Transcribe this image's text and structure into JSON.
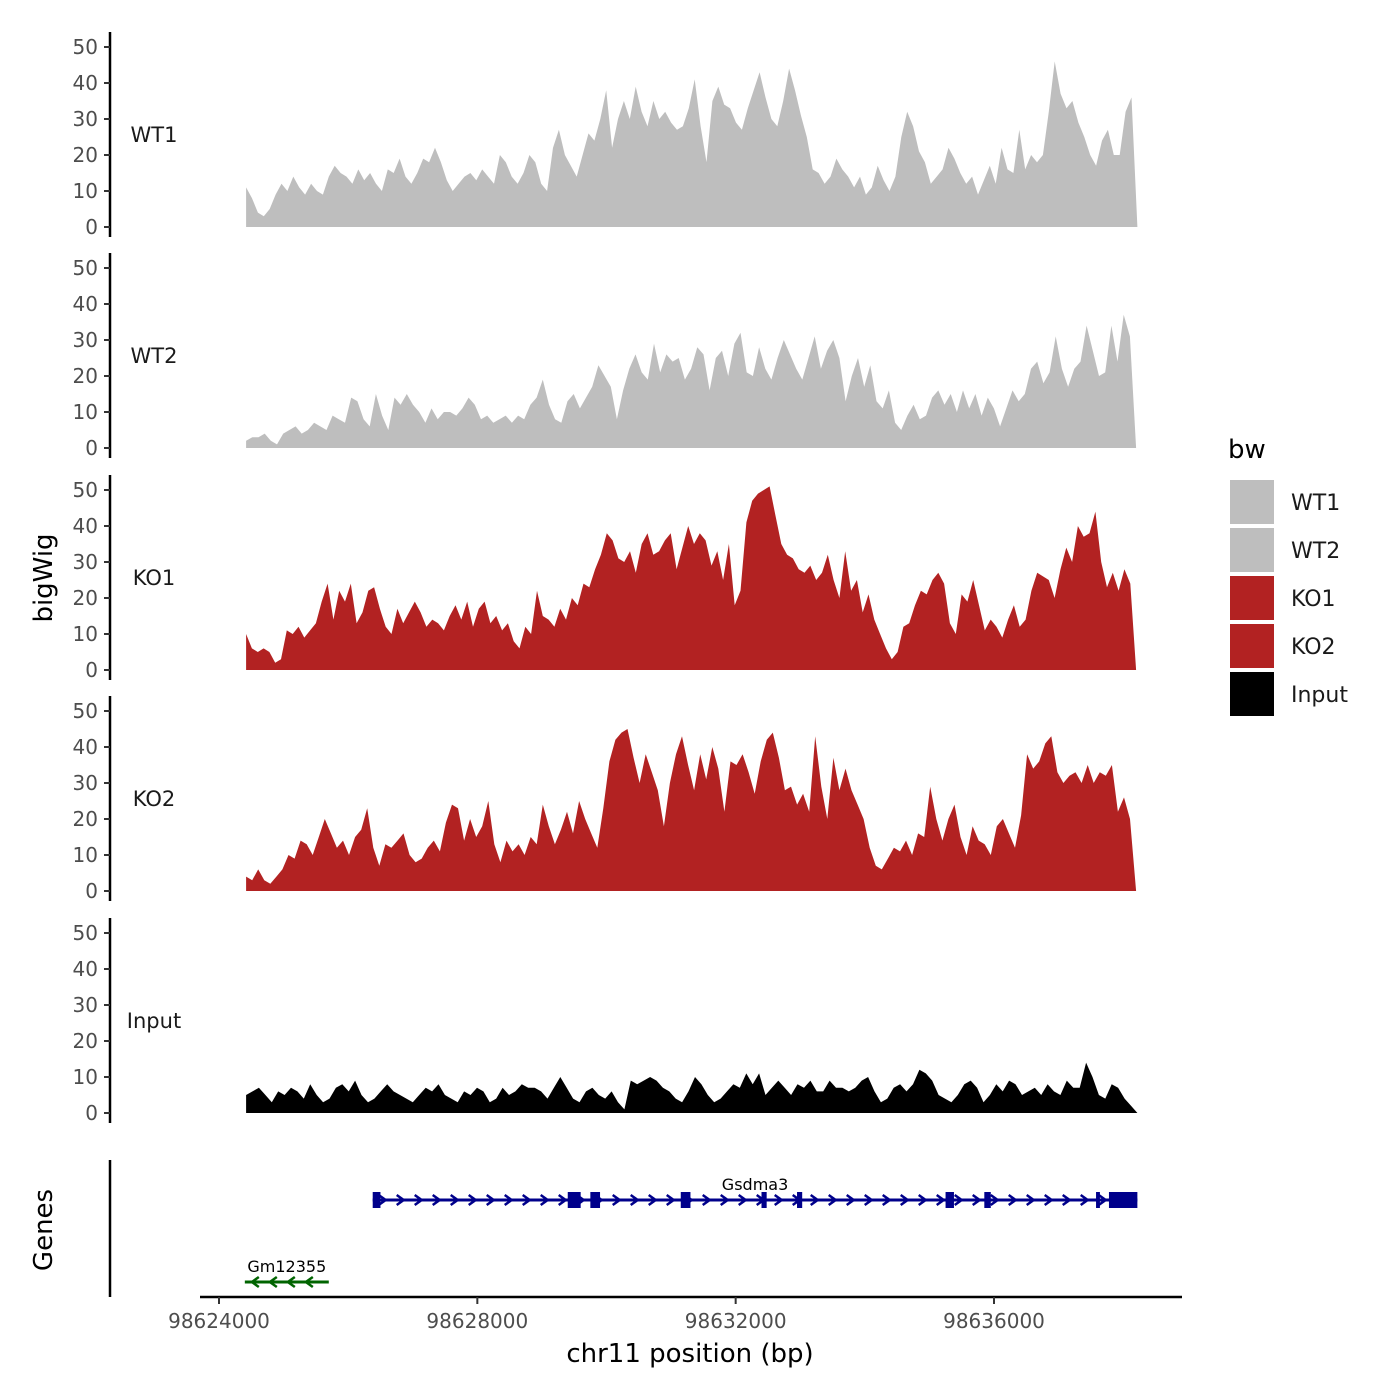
{
  "chart_data": {
    "type": "area",
    "y_axis_label": "bigWig",
    "x_axis_label": "chr11 position (bp)",
    "genes_axis_label": "Genes",
    "y_ticks": [
      0,
      10,
      20,
      30,
      40,
      50
    ],
    "y_range": [
      0,
      55
    ],
    "x_range": [
      98623600,
      98639200
    ],
    "x_ticks": [
      98624000,
      98628000,
      98632000,
      98636000
    ],
    "x_tick_labels": [
      "98624000",
      "98628000",
      "98632000",
      "98636000"
    ],
    "legend": {
      "title": "bw",
      "entries": [
        {
          "label": "WT1",
          "color": "#bebebe"
        },
        {
          "label": "WT2",
          "color": "#bebebe"
        },
        {
          "label": "KO1",
          "color": "#b22222"
        },
        {
          "label": "KO2",
          "color": "#b22222"
        },
        {
          "label": "Input",
          "color": "#000000"
        }
      ]
    },
    "series": [
      {
        "name": "WT1",
        "color": "#bebebe",
        "x_start": 98624420,
        "x_end": 98638220,
        "values": [
          11,
          8,
          4,
          3,
          5,
          9,
          12,
          10,
          14,
          11,
          9,
          12,
          10,
          9,
          14,
          17,
          15,
          14,
          12,
          16,
          13,
          15,
          12,
          10,
          16,
          15,
          19,
          14,
          12,
          15,
          19,
          18,
          22,
          18,
          13,
          10,
          12,
          14,
          15,
          13,
          16,
          14,
          12,
          20,
          18,
          14,
          12,
          15,
          20,
          18,
          12,
          10,
          22,
          27,
          20,
          17,
          14,
          20,
          26,
          24,
          30,
          38,
          22,
          30,
          35,
          30,
          39,
          32,
          28,
          35,
          30,
          32,
          29,
          27,
          28,
          33,
          41,
          28,
          18,
          35,
          39,
          34,
          33,
          29,
          27,
          33,
          38,
          43,
          36,
          30,
          28,
          35,
          44,
          38,
          31,
          25,
          16,
          15,
          12,
          14,
          19,
          16,
          14,
          11,
          14,
          9,
          11,
          17,
          13,
          10,
          14,
          25,
          32,
          28,
          21,
          18,
          12,
          14,
          16,
          22,
          19,
          15,
          12,
          14,
          9,
          13,
          17,
          12,
          22,
          16,
          15,
          27,
          16,
          20,
          18,
          20,
          32,
          46,
          37,
          33,
          35,
          29,
          25,
          20,
          17,
          24,
          27,
          20,
          20,
          32,
          36,
          0
        ]
      },
      {
        "name": "WT2",
        "color": "#bebebe",
        "x_start": 98624420,
        "x_end": 98638200,
        "values": [
          2,
          3,
          3,
          4,
          2,
          1,
          4,
          5,
          6,
          4,
          5,
          7,
          6,
          5,
          9,
          8,
          7,
          14,
          13,
          8,
          6,
          15,
          9,
          5,
          14,
          12,
          15,
          12,
          10,
          7,
          11,
          8,
          10,
          10,
          9,
          11,
          14,
          12,
          8,
          9,
          7,
          8,
          9,
          7,
          9,
          8,
          12,
          14,
          19,
          12,
          8,
          7,
          13,
          15,
          11,
          14,
          17,
          23,
          20,
          17,
          8,
          16,
          22,
          26,
          21,
          19,
          29,
          21,
          26,
          24,
          25,
          19,
          22,
          28,
          26,
          16,
          25,
          27,
          20,
          29,
          32,
          21,
          20,
          28,
          22,
          19,
          25,
          30,
          26,
          22,
          19,
          25,
          31,
          22,
          27,
          30,
          25,
          13,
          20,
          25,
          17,
          23,
          13,
          11,
          16,
          7,
          5,
          9,
          12,
          8,
          9,
          14,
          16,
          12,
          15,
          10,
          16,
          11,
          15,
          9,
          14,
          11,
          6,
          11,
          16,
          13,
          15,
          22,
          24,
          18,
          21,
          31,
          22,
          17,
          22,
          24,
          34,
          27,
          20,
          21,
          34,
          24,
          37,
          31,
          0
        ]
      },
      {
        "name": "KO1",
        "color": "#b22222",
        "x_start": 98624420,
        "x_end": 98638200,
        "values": [
          10,
          6,
          5,
          6,
          5,
          2,
          3,
          11,
          10,
          12,
          9,
          11,
          13,
          19,
          24,
          14,
          22,
          19,
          24,
          13,
          16,
          22,
          23,
          17,
          12,
          10,
          17,
          13,
          16,
          19,
          16,
          12,
          14,
          13,
          11,
          15,
          18,
          14,
          19,
          12,
          17,
          19,
          13,
          15,
          11,
          13,
          8,
          6,
          12,
          10,
          22,
          15,
          14,
          12,
          17,
          14,
          20,
          18,
          24,
          23,
          28,
          32,
          38,
          36,
          31,
          30,
          33,
          27,
          35,
          38,
          32,
          33,
          36,
          38,
          28,
          34,
          40,
          35,
          38,
          36,
          29,
          33,
          25,
          35,
          18,
          22,
          41,
          47,
          49,
          50,
          51,
          43,
          35,
          32,
          31,
          28,
          27,
          29,
          25,
          27,
          32,
          25,
          20,
          33,
          22,
          25,
          16,
          21,
          14,
          10,
          6,
          3,
          5,
          12,
          13,
          18,
          22,
          21,
          25,
          27,
          24,
          13,
          10,
          21,
          19,
          25,
          18,
          11,
          14,
          12,
          9,
          14,
          18,
          12,
          14,
          22,
          27,
          26,
          25,
          20,
          28,
          34,
          30,
          40,
          37,
          38,
          44,
          30,
          23,
          27,
          22,
          28,
          24,
          0
        ]
      },
      {
        "name": "KO2",
        "color": "#b22222",
        "x_start": 98624420,
        "x_end": 98638200,
        "values": [
          4,
          3,
          6,
          3,
          2,
          4,
          6,
          10,
          9,
          14,
          13,
          10,
          15,
          20,
          16,
          12,
          14,
          10,
          15,
          17,
          23,
          12,
          7,
          13,
          12,
          14,
          16,
          10,
          8,
          9,
          12,
          14,
          11,
          19,
          24,
          23,
          14,
          20,
          15,
          18,
          25,
          13,
          8,
          14,
          11,
          13,
          10,
          15,
          13,
          24,
          18,
          13,
          17,
          22,
          16,
          25,
          20,
          16,
          12,
          23,
          36,
          42,
          44,
          45,
          37,
          30,
          38,
          33,
          28,
          18,
          30,
          38,
          43,
          35,
          28,
          38,
          31,
          40,
          34,
          22,
          36,
          35,
          38,
          33,
          27,
          36,
          42,
          44,
          37,
          28,
          29,
          24,
          27,
          22,
          43,
          29,
          20,
          37,
          28,
          34,
          28,
          24,
          20,
          12,
          7,
          6,
          9,
          12,
          11,
          14,
          10,
          16,
          15,
          29,
          20,
          14,
          20,
          24,
          15,
          10,
          18,
          14,
          13,
          10,
          18,
          20,
          16,
          12,
          21,
          38,
          34,
          36,
          41,
          43,
          33,
          30,
          32,
          33,
          30,
          35,
          30,
          33,
          32,
          35,
          22,
          26,
          20,
          0
        ]
      },
      {
        "name": "Input",
        "color": "#000000",
        "x_start": 98624420,
        "x_end": 98638220,
        "values": [
          5,
          6,
          7,
          5,
          3,
          6,
          5,
          7,
          6,
          4,
          8,
          5,
          3,
          4,
          7,
          8,
          6,
          9,
          5,
          3,
          4,
          6,
          8,
          6,
          5,
          4,
          3,
          5,
          7,
          6,
          8,
          5,
          4,
          3,
          6,
          5,
          7,
          6,
          3,
          4,
          7,
          5,
          6,
          8,
          7,
          7,
          6,
          4,
          7,
          10,
          7,
          4,
          3,
          6,
          7,
          5,
          4,
          6,
          3,
          1,
          9,
          8,
          9,
          10,
          9,
          7,
          6,
          4,
          3,
          6,
          10,
          8,
          5,
          3,
          4,
          6,
          8,
          7,
          11,
          8,
          11,
          5,
          7,
          9,
          7,
          5,
          8,
          7,
          9,
          6,
          6,
          9,
          7,
          7,
          6,
          7,
          9,
          10,
          6,
          3,
          4,
          7,
          8,
          6,
          8,
          12,
          11,
          9,
          5,
          4,
          3,
          5,
          8,
          9,
          7,
          3,
          5,
          8,
          6,
          9,
          8,
          5,
          6,
          7,
          5,
          8,
          6,
          5,
          9,
          7,
          7,
          14,
          10,
          5,
          4,
          8,
          7,
          4,
          2,
          0
        ]
      }
    ],
    "genes": [
      {
        "name": "Gm12355",
        "strand": "-",
        "color": "#006400",
        "start": 98624400,
        "end": 98625700,
        "exons": []
      },
      {
        "name": "Gsdma3",
        "strand": "+",
        "color": "#00008b",
        "start": 98626380,
        "end": 98638220,
        "exons": [
          [
            98626380,
            98626500
          ],
          [
            98629400,
            98629600
          ],
          [
            98629750,
            98629900
          ],
          [
            98631150,
            98631300
          ],
          [
            98632400,
            98632480
          ],
          [
            98632950,
            98633030
          ],
          [
            98635250,
            98635380
          ],
          [
            98635850,
            98635950
          ],
          [
            98637580,
            98637640
          ],
          [
            98637780,
            98638220
          ]
        ]
      }
    ]
  }
}
